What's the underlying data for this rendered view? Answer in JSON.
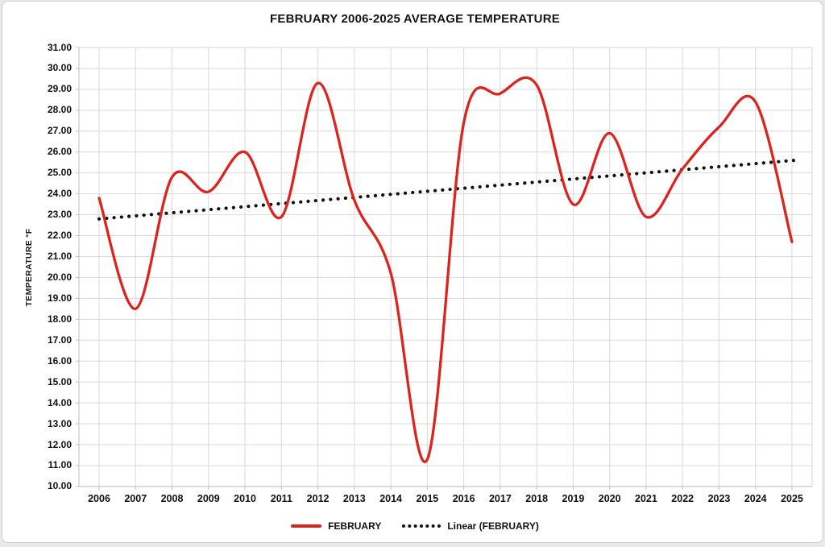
{
  "chart_data": {
    "type": "line",
    "title": "FEBRUARY 2006-2025 AVERAGE TEMPERATURE",
    "xlabel": "",
    "ylabel": "TEMPERATURE °F",
    "ylim": [
      10,
      31
    ],
    "grid": true,
    "legend_position": "bottom",
    "y_tick_labels": [
      "31.00",
      "30.00",
      "29.00",
      "28.00",
      "27.00",
      "26.00",
      "25.00",
      "24.00",
      "23.00",
      "22.00",
      "21.00",
      "20.00",
      "19.00",
      "18.00",
      "17.00",
      "16.00",
      "15.00",
      "14.00",
      "13.00",
      "12.00",
      "11.00",
      "10.00"
    ],
    "categories": [
      "2006",
      "2007",
      "2008",
      "2009",
      "2010",
      "2011",
      "2012",
      "2013",
      "2014",
      "2015",
      "2016",
      "2017",
      "2018",
      "2019",
      "2020",
      "2021",
      "2022",
      "2023",
      "2024",
      "2025"
    ],
    "series": [
      {
        "name": "FEBRUARY",
        "style": "smooth-line",
        "color": "#dc241f",
        "values": [
          23.8,
          18.5,
          24.8,
          24.1,
          26.0,
          22.9,
          29.3,
          23.7,
          20.2,
          11.3,
          27.4,
          28.8,
          29.2,
          23.5,
          26.9,
          22.9,
          25.2,
          27.2,
          28.4,
          21.7
        ]
      },
      {
        "name": "Linear (FEBRUARY)",
        "style": "dotted-trendline",
        "color": "#111111",
        "trend_start": 22.8,
        "trend_end": 25.6
      }
    ],
    "legend": [
      {
        "label": "FEBRUARY",
        "swatch": "solid-line",
        "color": "#dc241f"
      },
      {
        "label": "Linear (FEBRUARY)",
        "swatch": "dotted-line",
        "color": "#111111"
      }
    ],
    "colors": {
      "gridline": "#d9d9d9",
      "axis": "#bfbfbf",
      "text": "#111111",
      "background": "#ffffff"
    }
  }
}
